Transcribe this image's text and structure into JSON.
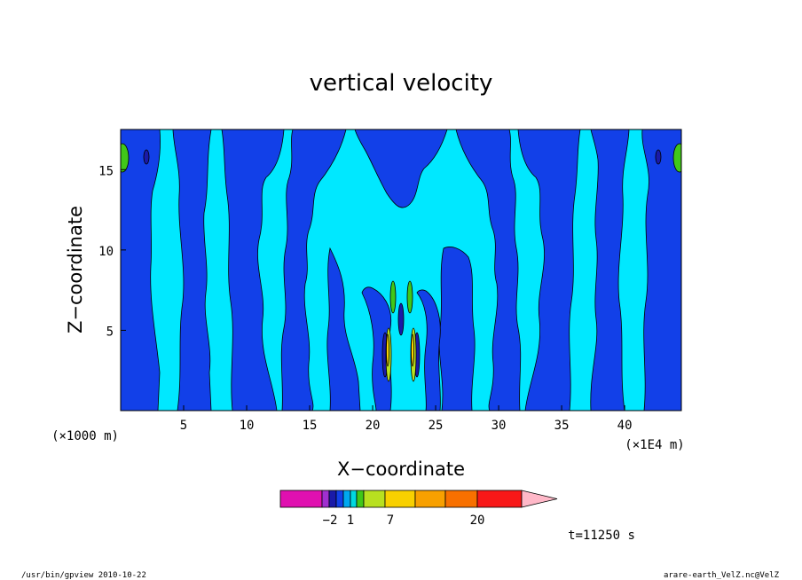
{
  "chart_data": {
    "type": "heatmap",
    "title": "vertical velocity",
    "xlabel": "X−coordinate",
    "ylabel": "Z−coordinate",
    "x_scale_note": "(×1E4 m)",
    "y_scale_note": "(×1000 m)",
    "xlim": [
      0,
      44.5
    ],
    "ylim": [
      0,
      17.5
    ],
    "x_ticks": [
      5,
      10,
      15,
      20,
      25,
      30,
      35,
      40
    ],
    "y_ticks": [
      5,
      10,
      15
    ],
    "colorbar": {
      "labels": [
        {
          "text": "−2",
          "value": -2
        },
        {
          "text": "1",
          "value": 1
        },
        {
          "text": "7",
          "value": 7
        },
        {
          "text": "20",
          "value": 20
        }
      ],
      "colors": [
        "#e010b0",
        "#a030d0",
        "#1a1aa8",
        "#1240e8",
        "#00a8f0",
        "#00d8e0",
        "#40c818",
        "#b8e020",
        "#f8d000",
        "#f8a000",
        "#f87000",
        "#f81818",
        "#f87878",
        "#ffb8c8"
      ]
    },
    "time_label": "t=11250 s",
    "legend": "none",
    "grid": false
  },
  "footer": {
    "left": "/usr/bin/gpview   2010-10-22",
    "right": "arare-earth_VelZ.nc@VelZ"
  },
  "palette": {
    "background": "#00e8ff",
    "blue": "#1240e8",
    "navy": "#1a1aa8",
    "green": "#40c818",
    "yellow": "#f8d000"
  }
}
